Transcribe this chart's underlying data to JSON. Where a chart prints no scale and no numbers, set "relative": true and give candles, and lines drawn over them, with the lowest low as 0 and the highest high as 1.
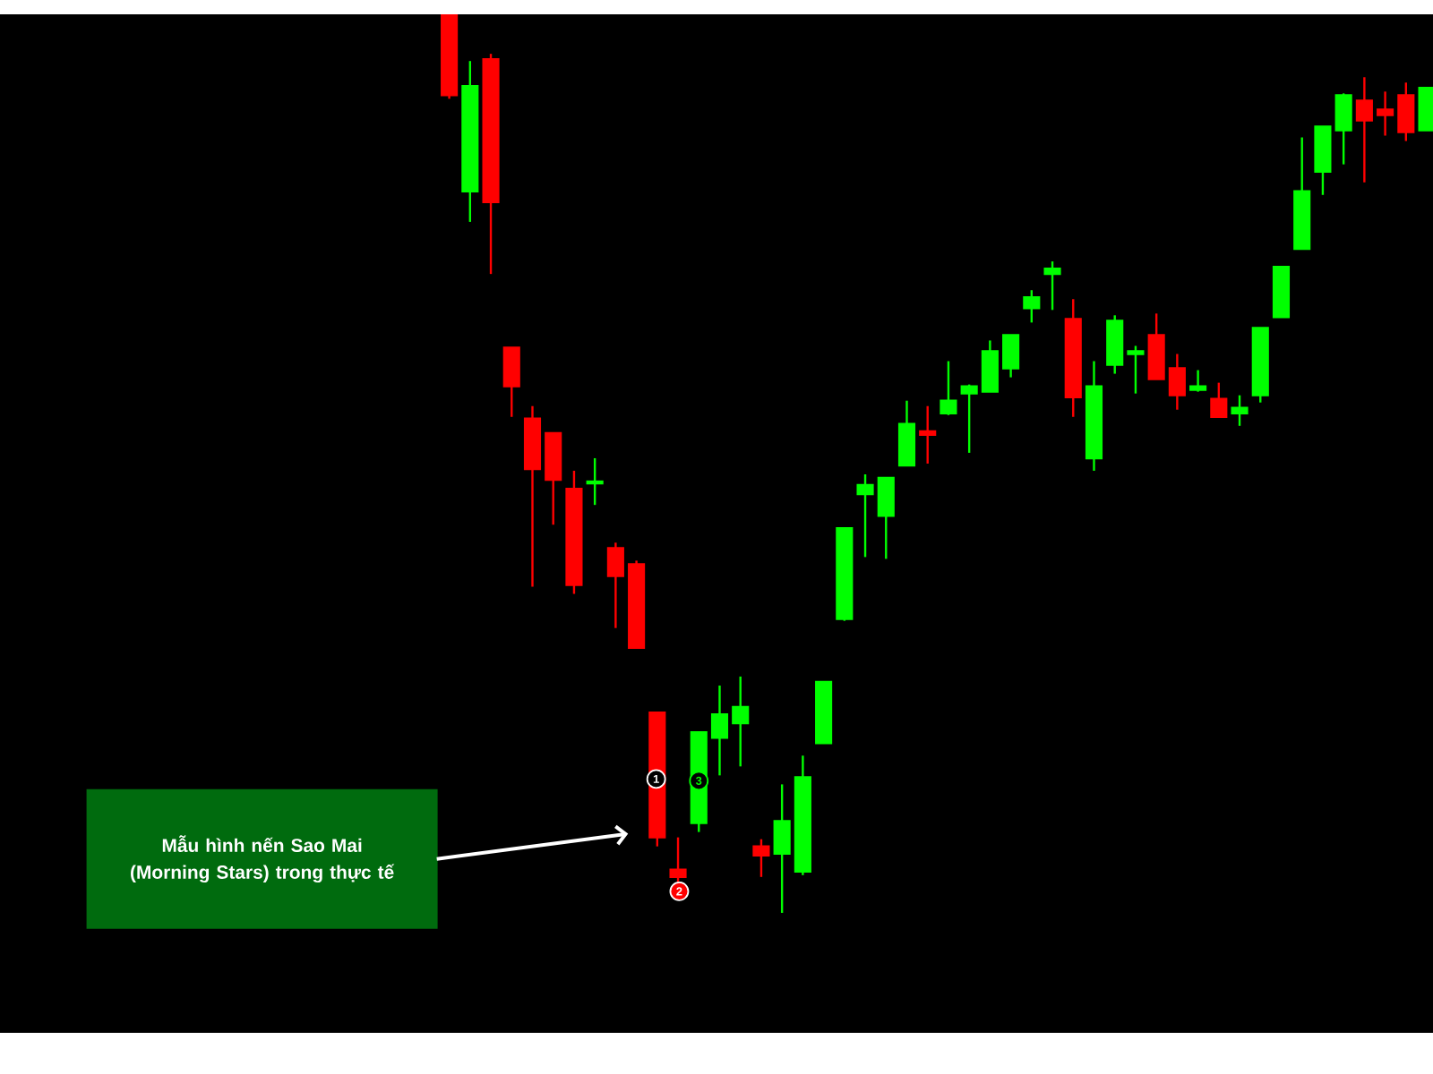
{
  "chart_data": {
    "type": "candlestick",
    "relative": true,
    "categories": [
      null,
      null,
      null,
      null,
      null,
      null,
      null,
      null,
      null,
      null,
      null,
      null,
      null,
      null,
      null,
      null,
      null,
      null,
      null,
      null,
      null,
      null,
      null,
      null,
      null,
      null,
      null,
      null,
      null,
      null,
      null,
      null,
      null,
      null,
      null,
      null,
      null,
      null,
      null,
      null,
      null,
      null,
      null,
      null,
      null,
      null,
      null,
      null
    ],
    "ohlc": [
      [
        1.0,
        1.0,
        0.906,
        0.91
      ],
      [
        0.803,
        0.948,
        0.769,
        0.92
      ],
      [
        0.95,
        0.956,
        0.711,
        0.791
      ],
      [
        0.629,
        0.629,
        0.552,
        0.586
      ],
      [
        0.55,
        0.564,
        0.363,
        0.494
      ],
      [
        0.534,
        0.534,
        0.432,
        0.482
      ],
      [
        0.472,
        0.492,
        0.355,
        0.365
      ],
      [
        0.478,
        0.506,
        0.454,
        0.48
      ],
      [
        0.406,
        0.412,
        0.317,
        0.375
      ],
      [
        0.388,
        0.392,
        0.295,
        0.295
      ],
      [
        0.223,
        0.223,
        0.074,
        0.084
      ],
      [
        0.048,
        0.084,
        0.016,
        0.04
      ],
      [
        0.1,
        0.201,
        0.09,
        0.201
      ],
      [
        0.195,
        0.253,
        0.153,
        0.221
      ],
      [
        0.211,
        0.263,
        0.163,
        0.229
      ],
      [
        0.074,
        0.082,
        0.04,
        0.064
      ],
      [
        0.066,
        0.143,
        0.0,
        0.102
      ],
      [
        0.046,
        0.175,
        0.042,
        0.151
      ],
      [
        0.189,
        0.257,
        0.189,
        0.257
      ],
      [
        0.327,
        0.428,
        0.325,
        0.428
      ],
      [
        0.466,
        0.488,
        0.396,
        0.476
      ],
      [
        0.442,
        0.484,
        0.394,
        0.484
      ],
      [
        0.498,
        0.57,
        0.498,
        0.544
      ],
      [
        0.536,
        0.564,
        0.5,
        0.532
      ],
      [
        0.556,
        0.614,
        0.554,
        0.57
      ],
      [
        0.578,
        0.588,
        0.512,
        0.586
      ],
      [
        0.58,
        0.637,
        0.58,
        0.625
      ],
      [
        0.606,
        0.643,
        0.596,
        0.643
      ],
      [
        0.673,
        0.693,
        0.657,
        0.685
      ],
      [
        0.711,
        0.725,
        0.671,
        0.717
      ],
      [
        0.661,
        0.683,
        0.552,
        0.574
      ],
      [
        0.506,
        0.614,
        0.492,
        0.586
      ],
      [
        0.61,
        0.665,
        0.6,
        0.659
      ],
      [
        0.622,
        0.631,
        0.578,
        0.625
      ],
      [
        0.643,
        0.667,
        0.594,
        0.594
      ],
      [
        0.606,
        0.622,
        0.56,
        0.576
      ],
      [
        0.582,
        0.604,
        0.58,
        0.586
      ],
      [
        0.572,
        0.59,
        0.552,
        0.552
      ],
      [
        0.556,
        0.576,
        0.542,
        0.562
      ],
      [
        0.576,
        0.651,
        0.568,
        0.651
      ],
      [
        0.663,
        0.719,
        0.663,
        0.719
      ],
      [
        0.739,
        0.863,
        0.739,
        0.803
      ],
      [
        0.825,
        0.875,
        0.799,
        0.875
      ],
      [
        0.871,
        0.912,
        0.833,
        0.91
      ],
      [
        0.904,
        0.93,
        0.813,
        0.882
      ],
      [
        0.894,
        0.914,
        0.865,
        0.888
      ],
      [
        0.91,
        0.924,
        0.859,
        0.869
      ],
      [
        0.871,
        0.918,
        0.871,
        0.918
      ]
    ],
    "colors": [
      "#ff0000",
      "#00ff00",
      "#ff0000",
      "#ff0000",
      "#ff0000",
      "#ff0000",
      "#ff0000",
      "#00ff00",
      "#ff0000",
      "#ff0000",
      "#ff0000",
      "#ff0000",
      "#00ff00",
      "#00ff00",
      "#00ff00",
      "#ff0000",
      "#00ff00",
      "#00ff00",
      "#00ff00",
      "#00ff00",
      "#00ff00",
      "#00ff00",
      "#00ff00",
      "#ff0000",
      "#00ff00",
      "#00ff00",
      "#00ff00",
      "#00ff00",
      "#00ff00",
      "#00ff00",
      "#ff0000",
      "#00ff00",
      "#00ff00",
      "#00ff00",
      "#ff0000",
      "#ff0000",
      "#00ff00",
      "#ff0000",
      "#00ff00",
      "#00ff00",
      "#00ff00",
      "#00ff00",
      "#00ff00",
      "#00ff00",
      "#ff0000",
      "#ff0000",
      "#ff0000",
      "#00ff00"
    ],
    "annotations": [
      "Mẫu hình nến Sao Mai (Morning Stars) trong thực tế",
      "1",
      "2",
      "3"
    ]
  }
}
